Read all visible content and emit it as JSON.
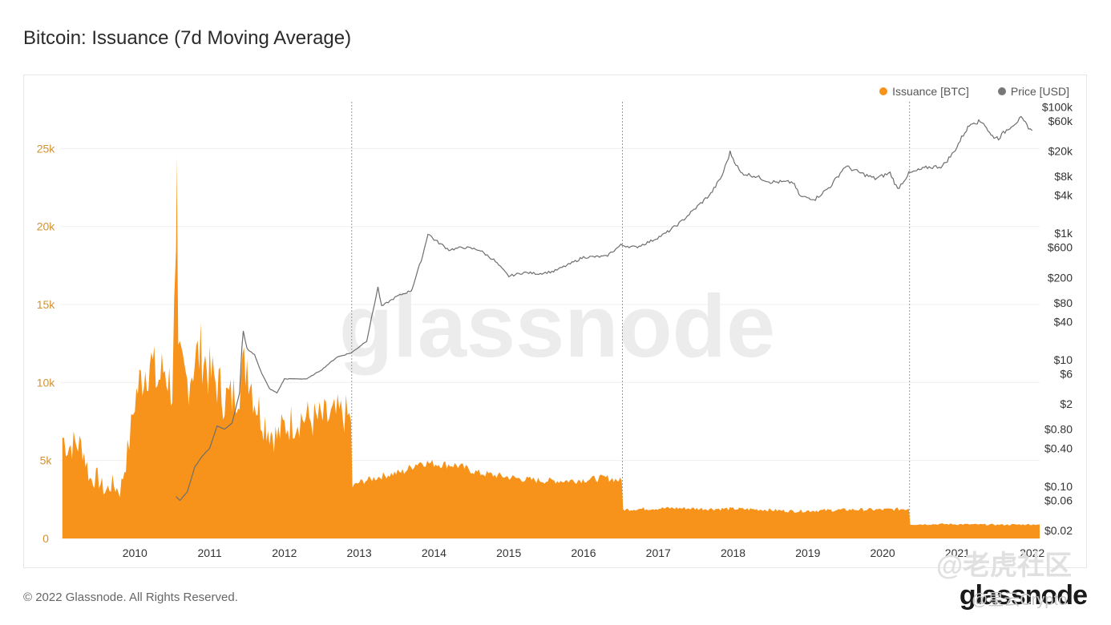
{
  "title": "Bitcoin: Issuance (7d Moving Average)",
  "legend": [
    {
      "label": "Issuance [BTC]",
      "color": "#f7931a"
    },
    {
      "label": "Price [USD]",
      "color": "#777777"
    }
  ],
  "watermark": "glassnode",
  "copyright": "© 2022 Glassnode. All Rights Reserved.",
  "footer_logo": "glassnode",
  "overlay": {
    "watermark": "@老虎社区",
    "handle": "@星云Crypto"
  },
  "chart_data": {
    "type": "area",
    "x_tick_labels": [
      "2010",
      "2011",
      "2012",
      "2013",
      "2014",
      "2015",
      "2016",
      "2017",
      "2018",
      "2019",
      "2020",
      "2021",
      "2022"
    ],
    "y_left": {
      "ticks": [
        0,
        5000,
        10000,
        15000,
        20000,
        25000
      ],
      "tick_labels": [
        "0",
        "5k",
        "10k",
        "15k",
        "20k",
        "25k"
      ],
      "range": [
        0,
        28000
      ],
      "color": "#d4922f"
    },
    "y_right": {
      "scale": "log",
      "ticks": [
        0.02,
        0.06,
        0.1,
        0.4,
        0.8,
        2,
        6,
        10,
        40,
        80,
        200,
        600,
        1000,
        4000,
        8000,
        20000,
        60000,
        100000
      ],
      "tick_labels": [
        "$0.02",
        "$0.06",
        "$0.10",
        "$0.40",
        "$0.80",
        "$2",
        "$6",
        "$10",
        "$40",
        "$80",
        "$200",
        "$600",
        "$1k",
        "$4k",
        "$8k",
        "$20k",
        "$60k",
        "$100k"
      ],
      "range": [
        0.015,
        120000
      ]
    },
    "halving_dates": [
      2012.9,
      2016.52,
      2020.36
    ],
    "grid": true,
    "legend_position": "top-right",
    "series": [
      {
        "name": "Issuance [BTC]",
        "color": "#f7931a",
        "points": [
          [
            2009.03,
            6500
          ],
          [
            2009.1,
            5900
          ],
          [
            2009.2,
            6100
          ],
          [
            2009.3,
            5900
          ],
          [
            2009.4,
            3800
          ],
          [
            2009.5,
            3900
          ],
          [
            2009.6,
            3000
          ],
          [
            2009.7,
            3500
          ],
          [
            2009.8,
            3000
          ],
          [
            2009.9,
            5500
          ],
          [
            2009.95,
            7000
          ],
          [
            2010.0,
            9000
          ],
          [
            2010.1,
            10500
          ],
          [
            2010.2,
            11500
          ],
          [
            2010.3,
            10000
          ],
          [
            2010.4,
            11000
          ],
          [
            2010.5,
            9500
          ],
          [
            2010.55,
            18500
          ],
          [
            2010.56,
            24500
          ],
          [
            2010.58,
            11000
          ],
          [
            2010.7,
            10000
          ],
          [
            2010.8,
            11500
          ],
          [
            2010.9,
            12000
          ],
          [
            2011.0,
            10500
          ],
          [
            2011.1,
            10000
          ],
          [
            2011.2,
            9000
          ],
          [
            2011.3,
            9000
          ],
          [
            2011.4,
            10000
          ],
          [
            2011.5,
            11500
          ],
          [
            2011.6,
            9000
          ],
          [
            2011.7,
            7800
          ],
          [
            2011.8,
            7000
          ],
          [
            2011.9,
            6500
          ],
          [
            2012.0,
            7200
          ],
          [
            2012.2,
            7800
          ],
          [
            2012.4,
            7600
          ],
          [
            2012.6,
            7700
          ],
          [
            2012.8,
            8000
          ],
          [
            2012.89,
            7500
          ],
          [
            2012.91,
            3300
          ],
          [
            2013.0,
            3600
          ],
          [
            2013.3,
            4000
          ],
          [
            2013.6,
            4300
          ],
          [
            2013.8,
            4900
          ],
          [
            2014.0,
            4800
          ],
          [
            2014.3,
            4700
          ],
          [
            2014.6,
            4200
          ],
          [
            2014.9,
            4000
          ],
          [
            2015.2,
            3800
          ],
          [
            2015.5,
            3700
          ],
          [
            2015.8,
            3700
          ],
          [
            2016.1,
            3800
          ],
          [
            2016.3,
            3900
          ],
          [
            2016.51,
            3700
          ],
          [
            2016.53,
            1850
          ],
          [
            2016.8,
            1900
          ],
          [
            2017.2,
            1950
          ],
          [
            2017.6,
            1900
          ],
          [
            2018.0,
            1900
          ],
          [
            2018.4,
            1850
          ],
          [
            2018.8,
            1750
          ],
          [
            2019.2,
            1800
          ],
          [
            2019.6,
            1850
          ],
          [
            2020.0,
            1850
          ],
          [
            2020.35,
            1900
          ],
          [
            2020.37,
            900
          ],
          [
            2020.8,
            920
          ],
          [
            2021.2,
            900
          ],
          [
            2021.6,
            880
          ],
          [
            2022.0,
            900
          ],
          [
            2022.1,
            900
          ]
        ]
      },
      {
        "name": "Price [USD]",
        "color": "#777777",
        "points": [
          [
            2010.55,
            0.07
          ],
          [
            2010.6,
            0.06
          ],
          [
            2010.7,
            0.08
          ],
          [
            2010.8,
            0.2
          ],
          [
            2010.9,
            0.3
          ],
          [
            2011.0,
            0.4
          ],
          [
            2011.1,
            0.9
          ],
          [
            2011.2,
            0.8
          ],
          [
            2011.3,
            1.0
          ],
          [
            2011.4,
            3
          ],
          [
            2011.43,
            15
          ],
          [
            2011.45,
            28
          ],
          [
            2011.5,
            15
          ],
          [
            2011.6,
            12
          ],
          [
            2011.7,
            6
          ],
          [
            2011.8,
            3.5
          ],
          [
            2011.9,
            3
          ],
          [
            2012.0,
            5
          ],
          [
            2012.15,
            5
          ],
          [
            2012.3,
            5
          ],
          [
            2012.5,
            7
          ],
          [
            2012.7,
            11
          ],
          [
            2012.9,
            13
          ],
          [
            2013.1,
            20
          ],
          [
            2013.25,
            140
          ],
          [
            2013.3,
            70
          ],
          [
            2013.5,
            100
          ],
          [
            2013.7,
            125
          ],
          [
            2013.85,
            450
          ],
          [
            2013.92,
            1000
          ],
          [
            2014.0,
            800
          ],
          [
            2014.2,
            550
          ],
          [
            2014.4,
            600
          ],
          [
            2014.6,
            550
          ],
          [
            2014.8,
            380
          ],
          [
            2015.0,
            210
          ],
          [
            2015.2,
            240
          ],
          [
            2015.4,
            230
          ],
          [
            2015.6,
            250
          ],
          [
            2015.8,
            320
          ],
          [
            2016.0,
            420
          ],
          [
            2016.3,
            430
          ],
          [
            2016.5,
            650
          ],
          [
            2016.7,
            600
          ],
          [
            2016.9,
            750
          ],
          [
            2017.1,
            1000
          ],
          [
            2017.3,
            1500
          ],
          [
            2017.5,
            2500
          ],
          [
            2017.7,
            4200
          ],
          [
            2017.85,
            8000
          ],
          [
            2017.96,
            19000
          ],
          [
            2018.1,
            9000
          ],
          [
            2018.3,
            8000
          ],
          [
            2018.5,
            6500
          ],
          [
            2018.8,
            6400
          ],
          [
            2018.9,
            3800
          ],
          [
            2019.1,
            3500
          ],
          [
            2019.3,
            5500
          ],
          [
            2019.5,
            11500
          ],
          [
            2019.7,
            9000
          ],
          [
            2019.9,
            7300
          ],
          [
            2020.1,
            9000
          ],
          [
            2020.2,
            5000
          ],
          [
            2020.35,
            8800
          ],
          [
            2020.6,
            11000
          ],
          [
            2020.8,
            11500
          ],
          [
            2020.95,
            19000
          ],
          [
            2021.1,
            40000
          ],
          [
            2021.2,
            58000
          ],
          [
            2021.35,
            57000
          ],
          [
            2021.45,
            35000
          ],
          [
            2021.55,
            32000
          ],
          [
            2021.7,
            48000
          ],
          [
            2021.85,
            65000
          ],
          [
            2021.95,
            48000
          ],
          [
            2022.0,
            42000
          ]
        ]
      }
    ]
  }
}
